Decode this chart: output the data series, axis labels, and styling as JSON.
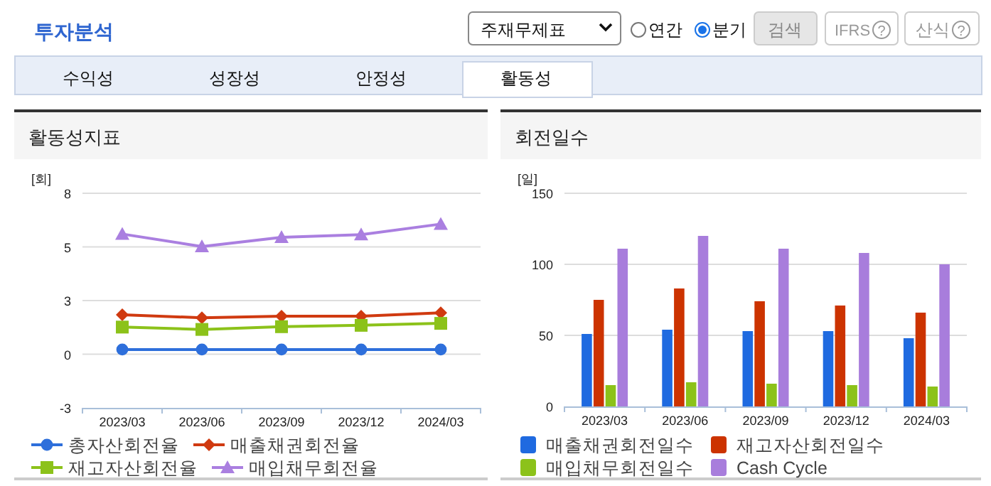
{
  "chart_data": [
    {
      "type": "other",
      "title": "투자분석",
      "annotations": [
        "주재무제표",
        "연간",
        "분기",
        "검색",
        "IFRS",
        "?",
        "산식",
        "?",
        "수익성",
        "성장성",
        "안정성",
        "활동성"
      ]
    },
    {
      "type": "line",
      "title": "활동성지표",
      "ylabel": "[회]",
      "categories": [
        "2023/03",
        "2023/06",
        "2023/09",
        "2023/12",
        "2024/03"
      ],
      "ylim": [
        -2.75,
        8.25
      ],
      "yticks": [
        {
          "value": -2.75,
          "label": "-3"
        },
        0,
        {
          "value": 2.75,
          "label": "3"
        },
        {
          "value": 5.5,
          "label": "5"
        },
        {
          "value": 8.25,
          "label": "8"
        }
      ],
      "grid": "y",
      "legend": "bottom",
      "series": [
        {
          "name": "총자산회전율",
          "color": "#2e6fdb",
          "marker": "circle",
          "values": [
            0.24,
            0.24,
            0.24,
            0.24,
            0.24
          ]
        },
        {
          "name": "매출채권회전율",
          "color": "#d03a10",
          "marker": "diamond",
          "values": [
            2.02,
            1.87,
            1.95,
            1.95,
            2.12
          ]
        },
        {
          "name": "재고자산회전율",
          "color": "#8cc21a",
          "marker": "square",
          "values": [
            1.39,
            1.27,
            1.41,
            1.48,
            1.58
          ]
        },
        {
          "name": "매입채무회전율",
          "color": "#aa7fe0",
          "marker": "triangle",
          "values": [
            6.16,
            5.52,
            5.99,
            6.13,
            6.67
          ]
        }
      ]
    },
    {
      "type": "bar",
      "title": "회전일수",
      "ylabel": "[일]",
      "categories": [
        "2023/03",
        "2023/06",
        "2023/09",
        "2023/12",
        "2024/03"
      ],
      "ylim": [
        0,
        150
      ],
      "yticks": [
        0,
        50,
        100,
        150
      ],
      "grid": "y",
      "legend": "bottom",
      "series": [
        {
          "name": "매출채권회전일수",
          "color": "#1f6ae0",
          "values": [
            51,
            54,
            53,
            53,
            48
          ]
        },
        {
          "name": "재고자산회전일수",
          "color": "#cc3300",
          "values": [
            75,
            83,
            74,
            71,
            66
          ]
        },
        {
          "name": "매입채무회전일수",
          "color": "#8cc21a",
          "values": [
            15,
            17,
            16,
            15,
            14
          ]
        },
        {
          "name": "Cash Cycle",
          "color": "#a87ddc",
          "values": [
            111,
            120,
            111,
            108,
            100
          ]
        }
      ]
    }
  ]
}
